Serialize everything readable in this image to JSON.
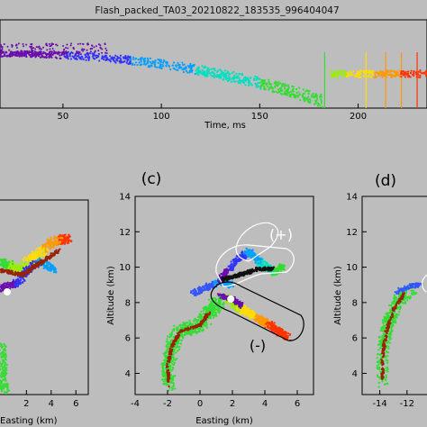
{
  "chart_data": [
    {
      "panel": "top",
      "type": "scatter",
      "title": "Flash_packed_TA03_20210822_183535_996404047",
      "xlabel": "Time, ms",
      "xticks": [
        50,
        100,
        150,
        200
      ],
      "xlim": [
        18,
        235
      ],
      "colors": [
        "#6a0dad",
        "#3333ff",
        "#00a0ff",
        "#00e0c0",
        "#33dd33",
        "#99ee00",
        "#ffdd00",
        "#ff9900",
        "#ff3300"
      ]
    },
    {
      "panel": "b",
      "type": "scatter",
      "xlabel": "Easting (km)",
      "xticks": [
        "2",
        "4",
        "6"
      ],
      "xlim": [
        -0.5,
        7
      ]
    },
    {
      "panel": "c",
      "letter": "(c)",
      "type": "scatter",
      "xlabel": "Easting (km)",
      "ylabel": "Altitude (km)",
      "xticks": [
        "-4",
        "-2",
        "0",
        "2",
        "4",
        "6"
      ],
      "yticks": [
        "4",
        "6",
        "8",
        "10",
        "12",
        "14"
      ],
      "xlim": [
        -4,
        7
      ],
      "ylim": [
        2.8,
        14
      ],
      "annotations": [
        "(+)",
        "(-)"
      ]
    },
    {
      "panel": "d",
      "letter": "(d)",
      "type": "scatter",
      "ylabel": "Altitude (km)",
      "xticks": [
        "-14",
        "-12"
      ],
      "yticks": [
        "4",
        "6",
        "8",
        "10",
        "12",
        "14"
      ],
      "xlim": [
        -15.3,
        -10
      ],
      "ylim": [
        2.8,
        14
      ]
    }
  ]
}
